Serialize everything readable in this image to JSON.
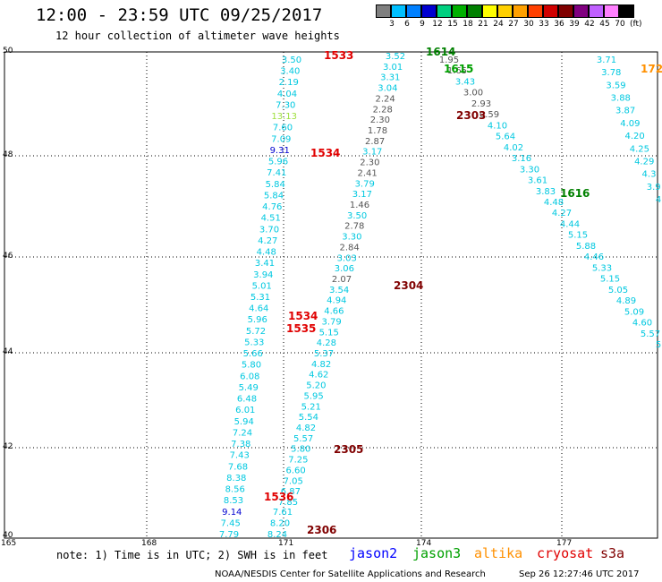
{
  "header": {
    "title": "12:00 - 23:59 UTC 09/25/2017",
    "subtitle": "12 hour collection of altimeter wave heights"
  },
  "legend": {
    "unit": "(ft)",
    "items": [
      {
        "label": "3",
        "color": "#7f7f7f"
      },
      {
        "label": "6",
        "color": "#00c0ff"
      },
      {
        "label": "9",
        "color": "#0080ff"
      },
      {
        "label": "12",
        "color": "#0000d0"
      },
      {
        "label": "15",
        "color": "#00d080"
      },
      {
        "label": "18",
        "color": "#00b000"
      },
      {
        "label": "21",
        "color": "#008000"
      },
      {
        "label": "24",
        "color": "#ffff00"
      },
      {
        "label": "27",
        "color": "#ffd000"
      },
      {
        "label": "30",
        "color": "#ffa000"
      },
      {
        "label": "33",
        "color": "#ff4000"
      },
      {
        "label": "36",
        "color": "#d00000"
      },
      {
        "label": "39",
        "color": "#800000"
      },
      {
        "label": "42",
        "color": "#800080"
      },
      {
        "label": "45",
        "color": "#c060ff"
      },
      {
        "label": "70",
        "color": "#ff80ff"
      },
      {
        "label": "",
        "color": "#000000"
      }
    ]
  },
  "axes": {
    "lat_labels": [
      "50",
      "48",
      "46",
      "44",
      "42",
      "40"
    ],
    "lon_labels": [
      "165",
      "168",
      "171",
      "174",
      "177"
    ]
  },
  "tracks": [
    {
      "id": "jason3-left",
      "color": "#00c8e0",
      "values": [
        "3.50",
        "3.40",
        "2.19",
        "4.04",
        "7.30",
        "13.13",
        "7.60",
        "7.09",
        "9.31",
        "5.96",
        "7.41",
        "5.84",
        "5.84",
        "4.76",
        "4.51",
        "3.70",
        "4.27",
        "4.48",
        "3.41",
        "3.94",
        "5.01",
        "5.31",
        "4.64",
        "5.96",
        "5.72",
        "5.33",
        "5.66",
        "5.80",
        "6.08",
        "5.49",
        "6.48",
        "6.01",
        "5.94",
        "7.24",
        "7.38",
        "7.43",
        "7.68",
        "8.38",
        "8.56",
        "8.53",
        "9.14",
        "7.45",
        "7.79"
      ]
    },
    {
      "id": "cryosat-1535",
      "color": "#00c8e0",
      "values": [
        "7.61",
        "8.20",
        "8.24"
      ]
    },
    {
      "id": "s3a-2305",
      "color": "#00c8e0",
      "values": [
        "3.52",
        "3.01",
        "3.31",
        "3.04",
        "2.24",
        "2.28",
        "2.30",
        "1.78",
        "2.87",
        "3.17",
        "2.30",
        "2.41",
        "3.79",
        "3.17",
        "1.46",
        "3.50",
        "2.78",
        "3.30",
        "2.84",
        "3.03",
        "3.06",
        "2.07",
        "3.54",
        "4.94",
        "4.66",
        "3.79",
        "5.15",
        "4.28",
        "5.37",
        "4.82",
        "4.62",
        "5.20",
        "5.95",
        "5.21",
        "5.54",
        "4.82",
        "5.57",
        "5.80",
        "7.25",
        "6.60",
        "7.05",
        "6.87",
        "7.85"
      ]
    },
    {
      "id": "jason3-1615",
      "color": "#00c8e0",
      "values": [
        "1.95",
        "1.65",
        "3.43",
        "3.00",
        "2.93",
        "0.59",
        "4.10",
        "5.64",
        "4.02",
        "3.16",
        "3.30",
        "3.61",
        "3.83",
        "4.48",
        "4.27",
        "4.44",
        "5.15",
        "5.88",
        "4.46",
        "5.33",
        "5.15",
        "5.05",
        "4.89",
        "5.09",
        "4.60",
        "5.57",
        "5"
      ]
    },
    {
      "id": "jason3-1616",
      "color": "#00c8e0",
      "values": [
        "3.71",
        "3.78",
        "3.59",
        "3.88",
        "3.87",
        "4.09",
        "4.20",
        "4.25",
        "4.29",
        "4.3",
        "3.9",
        "4"
      ]
    }
  ],
  "pass_labels": [
    {
      "text": "1533",
      "color": "#e00000"
    },
    {
      "text": "1534",
      "color": "#e00000"
    },
    {
      "text": "1534",
      "color": "#e00000"
    },
    {
      "text": "1535",
      "color": "#e00000"
    },
    {
      "text": "1536",
      "color": "#e00000"
    },
    {
      "text": "1614",
      "color": "#008000"
    },
    {
      "text": "1615",
      "color": "#00a000"
    },
    {
      "text": "1616",
      "color": "#008000"
    },
    {
      "text": "172",
      "color": "#ff9000"
    },
    {
      "text": "2303",
      "color": "#800000"
    },
    {
      "text": "2304",
      "color": "#800000"
    },
    {
      "text": "2305",
      "color": "#800000"
    },
    {
      "text": "2306",
      "color": "#800000"
    }
  ],
  "footer": {
    "note": "note: 1) Time is in UTC; 2) SWH is in feet",
    "satellites": [
      {
        "name": "jason2",
        "color": "#0000ff"
      },
      {
        "name": "jason3",
        "color": "#00a000"
      },
      {
        "name": "altika",
        "color": "#ff9000"
      },
      {
        "name": "cryosat",
        "color": "#e00000"
      },
      {
        "name": "s3a",
        "color": "#800000"
      }
    ],
    "credit": "NOAA/NESDIS Center for Satellite Applications and Research",
    "timestamp": "Sep 26 12:27:46 UTC 2017"
  }
}
